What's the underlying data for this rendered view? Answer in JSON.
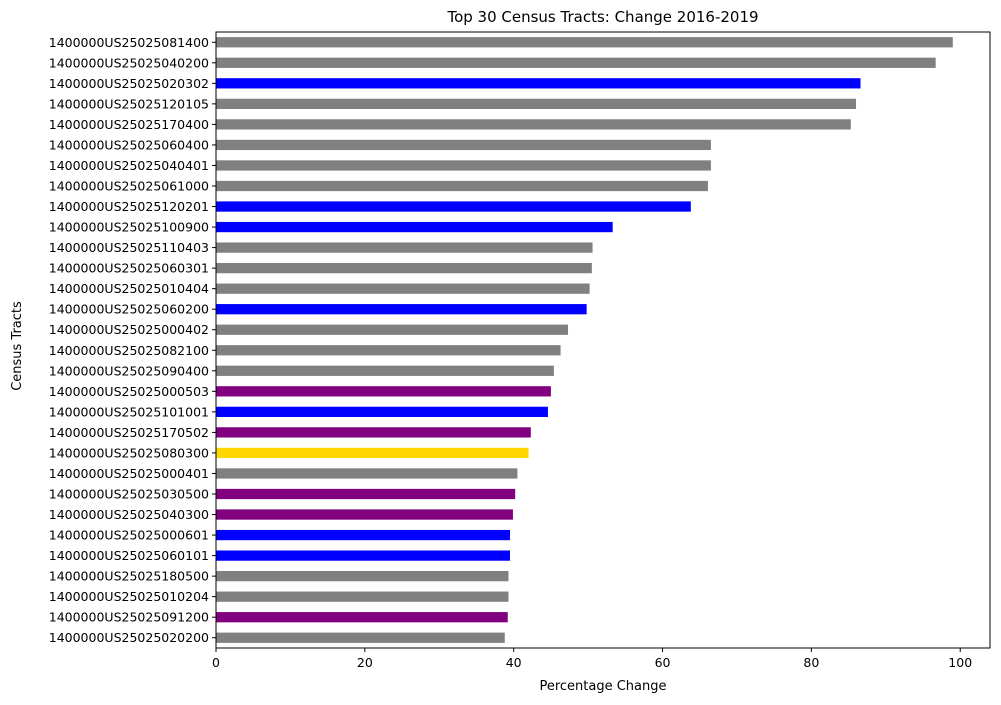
{
  "chart_data": {
    "type": "bar",
    "orientation": "horizontal",
    "title": "Top 30 Census Tracts: Change 2016-2019",
    "xlabel": "Percentage Change",
    "ylabel": "Census Tracts",
    "xlim": [
      0,
      104
    ],
    "xticks": [
      0,
      20,
      40,
      60,
      80,
      100
    ],
    "grid": false,
    "categories": [
      "1400000US25025081400",
      "1400000US25025040200",
      "1400000US25025020302",
      "1400000US25025120105",
      "1400000US25025170400",
      "1400000US25025060400",
      "1400000US25025040401",
      "1400000US25025061000",
      "1400000US25025120201",
      "1400000US25025100900",
      "1400000US25025110403",
      "1400000US25025060301",
      "1400000US25025010404",
      "1400000US25025060200",
      "1400000US25025000402",
      "1400000US25025082100",
      "1400000US25025090400",
      "1400000US25025000503",
      "1400000US25025101001",
      "1400000US25025170502",
      "1400000US25025080300",
      "1400000US25025000401",
      "1400000US25025030500",
      "1400000US25025040300",
      "1400000US25025000601",
      "1400000US25025060101",
      "1400000US25025180500",
      "1400000US25025010204",
      "1400000US25025091200",
      "1400000US25025020200"
    ],
    "values": [
      99.0,
      96.7,
      86.6,
      86.0,
      85.3,
      66.5,
      66.5,
      66.1,
      63.8,
      53.3,
      50.6,
      50.5,
      50.2,
      49.8,
      47.3,
      46.3,
      45.4,
      45.0,
      44.6,
      42.3,
      42.0,
      40.5,
      40.2,
      39.9,
      39.5,
      39.5,
      39.3,
      39.3,
      39.2,
      38.8
    ],
    "colors": [
      "#808080",
      "#808080",
      "#0000ff",
      "#808080",
      "#808080",
      "#808080",
      "#808080",
      "#808080",
      "#0000ff",
      "#0000ff",
      "#808080",
      "#808080",
      "#808080",
      "#0000ff",
      "#808080",
      "#808080",
      "#808080",
      "#800080",
      "#0000ff",
      "#800080",
      "#ffd700",
      "#808080",
      "#800080",
      "#800080",
      "#0000ff",
      "#0000ff",
      "#808080",
      "#808080",
      "#800080",
      "#808080"
    ]
  }
}
